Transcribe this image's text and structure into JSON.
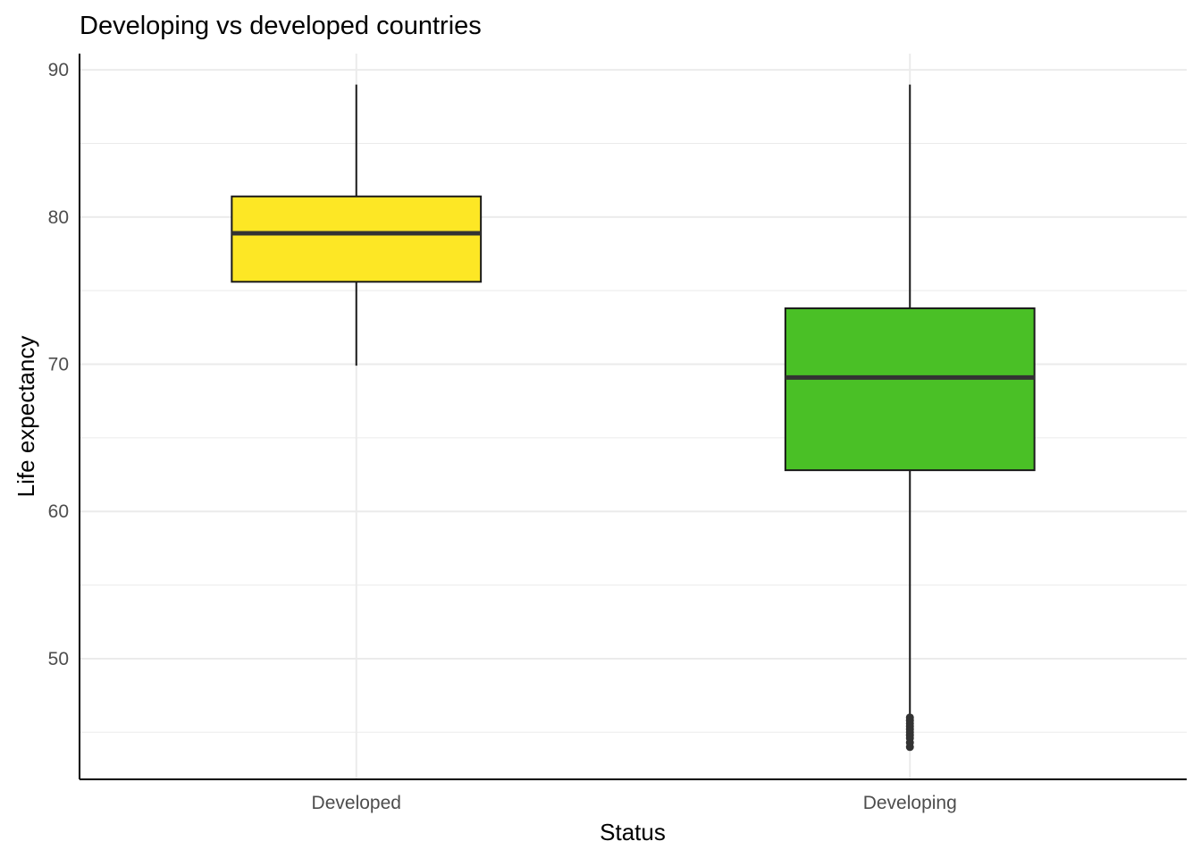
{
  "chart_data": {
    "type": "boxplot",
    "title": "Developing vs developed countries",
    "xlabel": "Status",
    "ylabel": "Life expectancy",
    "ylim": [
      41.8,
      91.1
    ],
    "y_ticks": [
      50,
      60,
      70,
      80,
      90
    ],
    "y_minor_ticks": [
      45,
      55,
      65,
      75,
      85
    ],
    "grid": true,
    "categories": [
      "Developed",
      "Developing"
    ],
    "boxes": [
      {
        "category": "Developed",
        "whisker_low": 69.9,
        "q1": 75.6,
        "median": 78.9,
        "q3": 81.4,
        "whisker_high": 89.0,
        "outliers": [],
        "fill": "#FDE725"
      },
      {
        "category": "Developing",
        "whisker_low": 46.1,
        "q1": 62.8,
        "median": 69.1,
        "q3": 73.8,
        "whisker_high": 89.0,
        "outliers": [
          44.0,
          44.3,
          44.6,
          44.8,
          45.0,
          45.2,
          45.4,
          45.6,
          45.8,
          46.0
        ],
        "fill": "#4AC026"
      }
    ]
  }
}
